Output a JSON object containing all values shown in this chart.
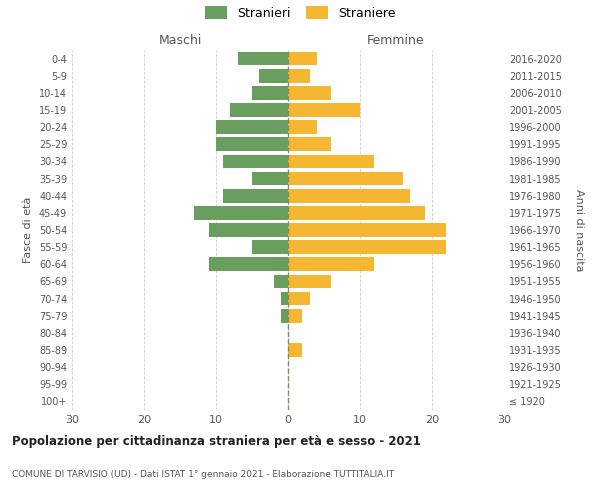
{
  "age_groups": [
    "100+",
    "95-99",
    "90-94",
    "85-89",
    "80-84",
    "75-79",
    "70-74",
    "65-69",
    "60-64",
    "55-59",
    "50-54",
    "45-49",
    "40-44",
    "35-39",
    "30-34",
    "25-29",
    "20-24",
    "15-19",
    "10-14",
    "5-9",
    "0-4"
  ],
  "birth_years": [
    "≤ 1920",
    "1921-1925",
    "1926-1930",
    "1931-1935",
    "1936-1940",
    "1941-1945",
    "1946-1950",
    "1951-1955",
    "1956-1960",
    "1961-1965",
    "1966-1970",
    "1971-1975",
    "1976-1980",
    "1981-1985",
    "1986-1990",
    "1991-1995",
    "1996-2000",
    "2001-2005",
    "2006-2010",
    "2011-2015",
    "2016-2020"
  ],
  "maschi": [
    0,
    0,
    0,
    0,
    0,
    1,
    1,
    2,
    11,
    5,
    11,
    13,
    9,
    5,
    9,
    10,
    10,
    8,
    5,
    4,
    7
  ],
  "femmine": [
    0,
    0,
    0,
    2,
    0,
    2,
    3,
    6,
    12,
    22,
    22,
    19,
    17,
    16,
    12,
    6,
    4,
    10,
    6,
    3,
    4
  ],
  "color_maschi": "#6a9e5e",
  "color_femmine": "#f5b731",
  "title": "Popolazione per cittadinanza straniera per età e sesso - 2021",
  "subtitle": "COMUNE DI TARVISIO (UD) - Dati ISTAT 1° gennaio 2021 - Elaborazione TUTTITALIA.IT",
  "xlabel_left": "Maschi",
  "xlabel_right": "Femmine",
  "ylabel_left": "Fasce di età",
  "ylabel_right": "Anni di nascita",
  "xlim": 30,
  "legend_stranieri": "Stranieri",
  "legend_straniere": "Straniere",
  "bg_color": "#ffffff",
  "grid_color": "#cccccc",
  "bar_height": 0.8
}
